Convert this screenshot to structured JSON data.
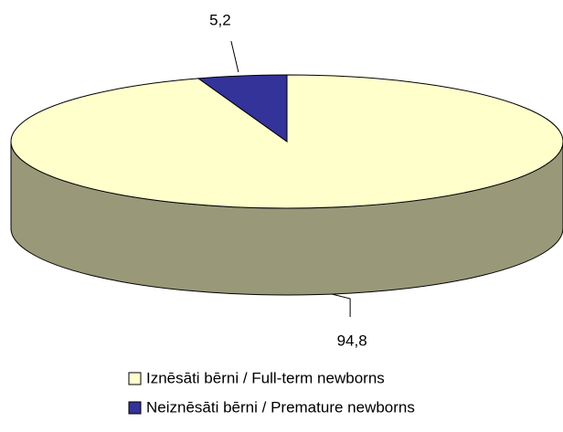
{
  "chart_data": {
    "type": "pie3d",
    "categories": [
      "Iznēsāti bērni / Full-term newborns",
      "Neiznēsāti bērni / Premature newborns"
    ],
    "values": [
      94.8,
      5.2
    ],
    "value_labels": [
      "94,8",
      "5,2"
    ],
    "colors": [
      "#ffffcc",
      "#333399"
    ],
    "legend": "bottom"
  }
}
